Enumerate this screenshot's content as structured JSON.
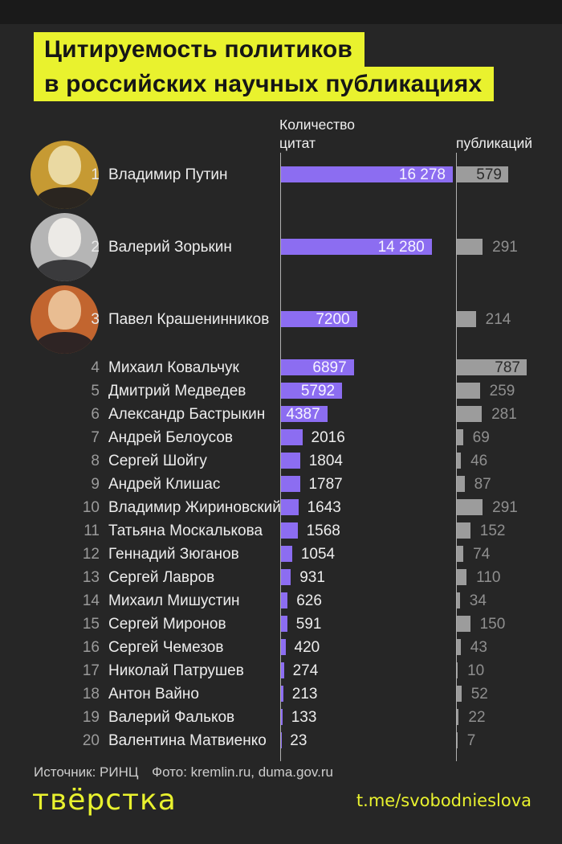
{
  "meta": {
    "bg_color": "#262626",
    "accent_yellow": "#e9f22e",
    "citations_bar_color": "#8c6df1",
    "publications_bar_color": "#9c9c9c"
  },
  "title": {
    "line1": "Цитируемость политиков",
    "line2": "в российских научных публикациях"
  },
  "headers": {
    "citations_line1": "Количество",
    "citations_line2": "цитат",
    "publications": "публикаций"
  },
  "chart_data": {
    "type": "bar",
    "orientation": "horizontal",
    "title": "Цитируемость политиков в российских научных публикациях",
    "categories": [
      "Владимир Путин",
      "Валерий Зорькин",
      "Павел Крашенинников",
      "Михаил Ковальчук",
      "Дмитрий Медведев",
      "Александр Бастрыкин",
      "Андрей Белоусов",
      "Сергей Шойгу",
      "Андрей Клишас",
      "Владимир Жириновский",
      "Татьяна Москалькова",
      "Геннадий Зюганов",
      "Сергей Лавров",
      "Михаил Мишустин",
      "Сергей Миронов",
      "Сергей Чемезов",
      "Николай Патрушев",
      "Антон Вайно",
      "Валерий Фальков",
      "Валентина Матвиенко"
    ],
    "ranks": [
      1,
      2,
      3,
      4,
      5,
      6,
      7,
      8,
      9,
      10,
      11,
      12,
      13,
      14,
      15,
      16,
      17,
      18,
      19,
      20
    ],
    "series": [
      {
        "name": "Количество цитат",
        "color": "#8c6df1",
        "values": [
          16278,
          14280,
          7200,
          6897,
          5792,
          4387,
          2016,
          1804,
          1787,
          1643,
          1568,
          1054,
          931,
          626,
          591,
          420,
          274,
          213,
          133,
          23
        ]
      },
      {
        "name": "Количество публикаций",
        "color": "#9c9c9c",
        "values": [
          579,
          291,
          214,
          787,
          259,
          281,
          69,
          46,
          87,
          291,
          152,
          74,
          110,
          34,
          150,
          43,
          10,
          52,
          22,
          7
        ]
      }
    ],
    "xlim_citations": [
      0,
      16278
    ],
    "xlim_publications": [
      0,
      787
    ],
    "legend_position": "top",
    "grid": false,
    "medals": [
      {
        "rank": 1,
        "bg": "#c69a33",
        "face": "#ead9a2",
        "suit": "#2a2520"
      },
      {
        "rank": 2,
        "bg": "#b5b5b5",
        "face": "#eceae6",
        "suit": "#3a3a3c"
      },
      {
        "rank": 3,
        "bg": "#c2652f",
        "face": "#e9bd92",
        "suit": "#2e2424"
      }
    ]
  },
  "footer": {
    "source": "Источник: РИНЦ",
    "photo_credit": "Фото: kremlin.ru, duma.gov.ru",
    "logo": "твёрстка",
    "link": "t.me/svobodnieslova"
  }
}
